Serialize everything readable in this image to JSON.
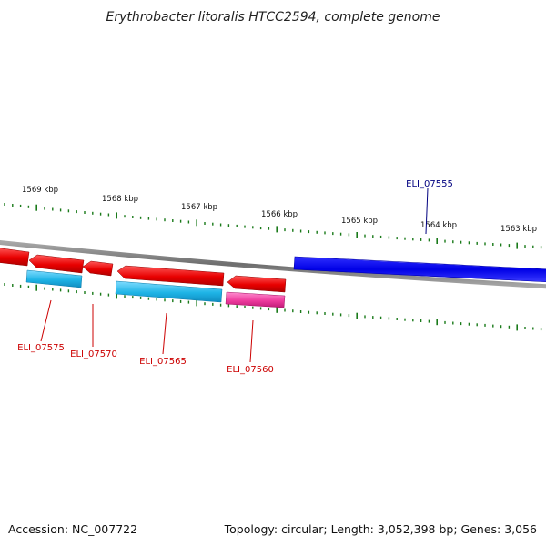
{
  "title": "Erythrobacter litoralis HTCC2594, complete genome",
  "footer": {
    "accession": "Accession: NC_007722",
    "summary": "Topology: circular; Length: 3,052,398 bp; Genes: 3,056"
  },
  "scale_labels": [
    "1569 kbp",
    "1568 kbp",
    "1567 kbp",
    "1566 kbp",
    "1565 kbp",
    "1564 kbp",
    "1563 kbp"
  ],
  "gene_labels": {
    "eli_07555": "ELI_07555",
    "eli_07560": "ELI_07560",
    "eli_07565": "ELI_07565",
    "eli_07570": "ELI_07570",
    "eli_07575": "ELI_07575"
  },
  "colors": {
    "background": "#ffffff",
    "backbone": "#808080",
    "forward_gene_highlight": "#0000ee",
    "forward_gene_highlight_label": "#000080",
    "reverse_gene": "#ee0000",
    "reverse_gene_label": "#cc0000",
    "rna_gene": "#1eb4e6",
    "pink_gene": "#ee3c9e",
    "tick": "#1a7a1a"
  }
}
